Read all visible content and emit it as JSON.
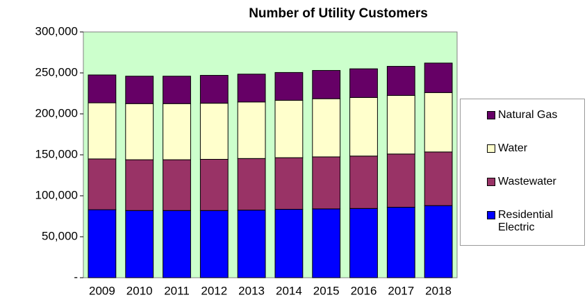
{
  "chart_data": {
    "type": "stacked_bar",
    "title": "Number of Utility Customers",
    "categories": [
      "2009",
      "2010",
      "2011",
      "2012",
      "2013",
      "2014",
      "2015",
      "2016",
      "2017",
      "2018"
    ],
    "series": [
      {
        "name": "Residential Electric",
        "color": "#0000ff",
        "values": [
          83000,
          82000,
          82000,
          82000,
          82500,
          83500,
          84000,
          84500,
          86000,
          88000
        ]
      },
      {
        "name": "Wastewater",
        "color": "#993366",
        "values": [
          62000,
          62000,
          62000,
          62500,
          63000,
          63000,
          63500,
          64000,
          65000,
          65500
        ]
      },
      {
        "name": "Water",
        "color": "#ffffcc",
        "values": [
          68500,
          68500,
          68500,
          68500,
          69000,
          70000,
          71000,
          71500,
          71500,
          72500
        ]
      },
      {
        "name": "Natural Gas",
        "color": "#660066",
        "values": [
          34000,
          33500,
          33500,
          34000,
          34000,
          34000,
          34500,
          35000,
          35500,
          36000
        ]
      }
    ],
    "ylim": [
      0,
      300000
    ],
    "yticks": [
      {
        "value": 0,
        "label": "-"
      },
      {
        "value": 50000,
        "label": "50,000"
      },
      {
        "value": 100000,
        "label": "100,000"
      },
      {
        "value": 150000,
        "label": "150,000"
      },
      {
        "value": 200000,
        "label": "200,000"
      },
      {
        "value": 250000,
        "label": "250,000"
      },
      {
        "value": 300000,
        "label": "300,000"
      }
    ],
    "plot_background": "#ccffcc",
    "legend": "right"
  }
}
